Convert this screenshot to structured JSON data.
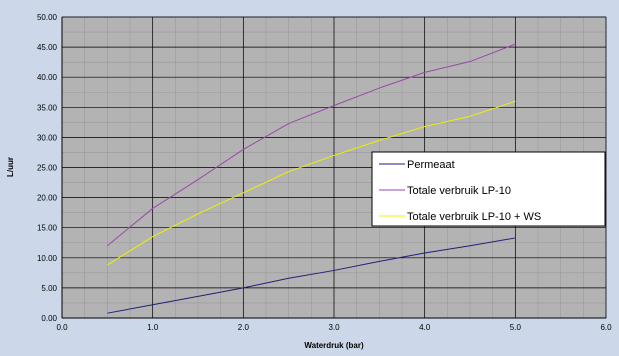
{
  "chart_data": {
    "type": "line",
    "xlabel": "Waterdruk (bar)",
    "ylabel": "L/uur",
    "xlim": [
      0,
      6
    ],
    "ylim": [
      0,
      50
    ],
    "x_ticks": [
      "0.0",
      "1.0",
      "2.0",
      "3.0",
      "4.0",
      "5.0",
      "6.0"
    ],
    "y_ticks": [
      "0.00",
      "5.00",
      "10.00",
      "15.00",
      "20.00",
      "25.00",
      "30.00",
      "35.00",
      "40.00",
      "45.00",
      "50.00"
    ],
    "x_minor_step": 0.25,
    "y_minor_step": 2.5,
    "grid": true,
    "legend_position": "right",
    "plot_background": "#b3b3b3",
    "series": [
      {
        "name": "Permeaat",
        "color": "#1f1f7a",
        "x": [
          0.5,
          1.0,
          1.5,
          2.0,
          2.5,
          3.0,
          3.5,
          4.0,
          4.5,
          5.0
        ],
        "y": [
          0.8,
          2.2,
          3.6,
          5.0,
          6.6,
          7.9,
          9.4,
          10.8,
          12.0,
          13.3
        ]
      },
      {
        "name": "Totale verbruik LP-10",
        "color": "#9a4aa8",
        "x": [
          0.5,
          1.0,
          1.5,
          2.0,
          2.5,
          3.0,
          3.5,
          4.0,
          4.5,
          5.0
        ],
        "y": [
          12.0,
          18.2,
          23.0,
          28.0,
          32.3,
          35.3,
          38.2,
          40.8,
          42.6,
          45.5
        ]
      },
      {
        "name": "Totale verbruik LP-10 + WS",
        "color": "#f0f000",
        "x": [
          0.5,
          1.0,
          1.5,
          2.0,
          2.5,
          3.0,
          3.5,
          4.0,
          4.5,
          5.0
        ],
        "y": [
          8.8,
          13.5,
          17.3,
          20.8,
          24.3,
          27.0,
          29.5,
          31.8,
          33.5,
          36.0
        ]
      }
    ]
  }
}
